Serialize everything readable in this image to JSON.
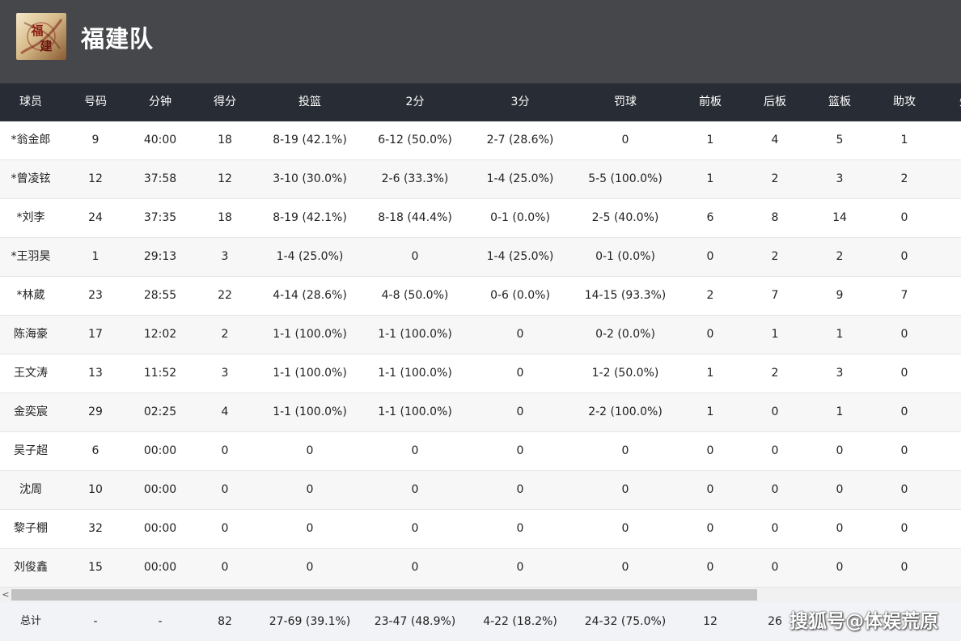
{
  "team": {
    "name": "福建队",
    "logo_text": "福建"
  },
  "table": {
    "columns": [
      "球员",
      "号码",
      "分钟",
      "得分",
      "投篮",
      "2分",
      "3分",
      "罚球",
      "前板",
      "后板",
      "篮板",
      "助攻",
      "失"
    ],
    "rows": [
      [
        "*翁金郎",
        "9",
        "40:00",
        "18",
        "8-19 (42.1%)",
        "6-12 (50.0%)",
        "2-7 (28.6%)",
        "0",
        "1",
        "4",
        "5",
        "1"
      ],
      [
        "*曾凌铉",
        "12",
        "37:58",
        "12",
        "3-10 (30.0%)",
        "2-6 (33.3%)",
        "1-4 (25.0%)",
        "5-5 (100.0%)",
        "1",
        "2",
        "3",
        "2"
      ],
      [
        "*刘李",
        "24",
        "37:35",
        "18",
        "8-19 (42.1%)",
        "8-18 (44.4%)",
        "0-1 (0.0%)",
        "2-5 (40.0%)",
        "6",
        "8",
        "14",
        "0"
      ],
      [
        "*王羽昊",
        "1",
        "29:13",
        "3",
        "1-4 (25.0%)",
        "0",
        "1-4 (25.0%)",
        "0-1 (0.0%)",
        "0",
        "2",
        "2",
        "0"
      ],
      [
        "*林葳",
        "23",
        "28:55",
        "22",
        "4-14 (28.6%)",
        "4-8 (50.0%)",
        "0-6 (0.0%)",
        "14-15 (93.3%)",
        "2",
        "7",
        "9",
        "7"
      ],
      [
        "陈海豪",
        "17",
        "12:02",
        "2",
        "1-1 (100.0%)",
        "1-1 (100.0%)",
        "0",
        "0-2 (0.0%)",
        "0",
        "1",
        "1",
        "0"
      ],
      [
        "王文涛",
        "13",
        "11:52",
        "3",
        "1-1 (100.0%)",
        "1-1 (100.0%)",
        "0",
        "1-2 (50.0%)",
        "1",
        "2",
        "3",
        "0"
      ],
      [
        "金奕宸",
        "29",
        "02:25",
        "4",
        "1-1 (100.0%)",
        "1-1 (100.0%)",
        "0",
        "2-2 (100.0%)",
        "1",
        "0",
        "1",
        "0"
      ],
      [
        "吴子超",
        "6",
        "00:00",
        "0",
        "0",
        "0",
        "0",
        "0",
        "0",
        "0",
        "0",
        "0"
      ],
      [
        "沈周",
        "10",
        "00:00",
        "0",
        "0",
        "0",
        "0",
        "0",
        "0",
        "0",
        "0",
        "0"
      ],
      [
        "黎子棚",
        "32",
        "00:00",
        "0",
        "0",
        "0",
        "0",
        "0",
        "0",
        "0",
        "0",
        "0"
      ],
      [
        "刘俊鑫",
        "15",
        "00:00",
        "0",
        "0",
        "0",
        "0",
        "0",
        "0",
        "0",
        "0",
        "0"
      ]
    ],
    "total": [
      "总计",
      "-",
      "-",
      "82",
      "27-69 (39.1%)",
      "23-47 (48.9%)",
      "4-22 (18.2%)",
      "24-32 (75.0%)",
      "12",
      "26"
    ]
  },
  "scrollbar": {
    "left_arrow": "<"
  },
  "watermark": "搜狐号@体娱荒原",
  "colors": {
    "header_bg": "#45474b",
    "table_header_bg": "#282c34",
    "row_alt_bg": "#f7f7f7",
    "total_bg": "#f2f3f7"
  },
  "icons": {
    "logo": "team-logo-calligraphy",
    "scroll_left": "chevron-left-icon"
  }
}
